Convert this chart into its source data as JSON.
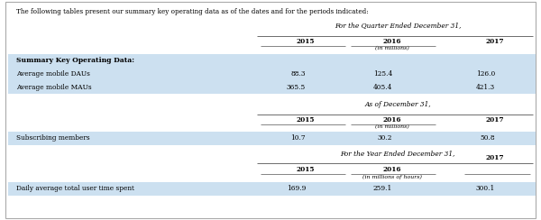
{
  "intro_text": "The following tables present our summary key operating data as of the dates and for the periods indicated:",
  "section1_header": "For the Quarter Ended December 31,",
  "section1_unit": "(in millions)",
  "section1_bold_row": "Summary Key Operating Data:",
  "section1_rows": [
    {
      "label": "Average mobile DAUs",
      "values": [
        "88.3",
        "125.4",
        "126.0"
      ]
    },
    {
      "label": "Average mobile MAUs",
      "values": [
        "365.5",
        "405.4",
        "421.3"
      ]
    }
  ],
  "section2_header": "As of December 31,",
  "section2_unit": "(in millions)",
  "section2_rows": [
    {
      "label": "Subscribing members",
      "values": [
        "10.7",
        "30.2",
        "50.8"
      ]
    }
  ],
  "section3_header": "For the Year Ended December 31,",
  "section3_unit": "(in millions of hours)",
  "section3_rows": [
    {
      "label": "Daily average total user time spent",
      "values": [
        "169.9",
        "259.1",
        "300.1"
      ]
    }
  ],
  "bg_color": "#ffffff",
  "row_bg_color": "#cce0f0",
  "header_color": "#000000",
  "text_color": "#000000",
  "bold_color": "#000000",
  "col_label": 0.03,
  "col_2015": 0.565,
  "col_2016": 0.725,
  "col_2017": 0.915
}
